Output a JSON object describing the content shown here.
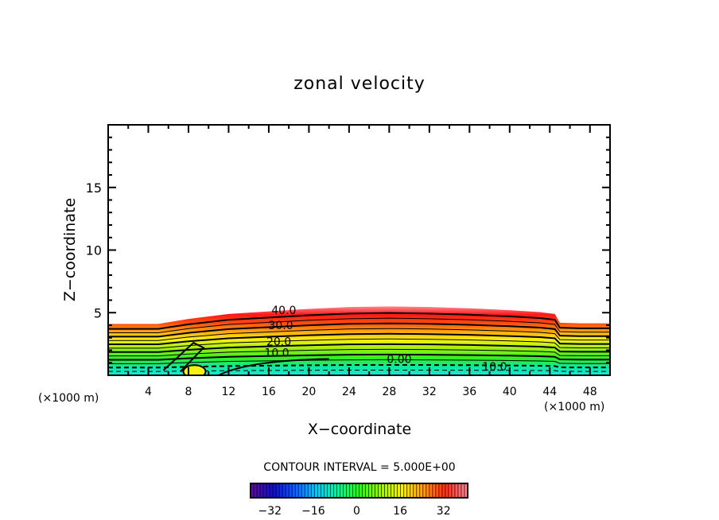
{
  "chart_data": {
    "type": "heatmap",
    "subtype": "filled-contour",
    "title": "zonal velocity",
    "xlabel": "X−coordinate",
    "ylabel": "Z−coordinate",
    "x_unit_left": "(×1000 m)",
    "x_unit_right": "(×1000 m)",
    "xlim": [
      0,
      50
    ],
    "ylim": [
      0,
      20
    ],
    "x_ticks": [
      4,
      8,
      12,
      16,
      20,
      24,
      28,
      32,
      36,
      40,
      44,
      48
    ],
    "x_tick_labels": [
      "4",
      "8",
      "12",
      "16",
      "20",
      "24",
      "28",
      "32",
      "36",
      "40",
      "44",
      "48"
    ],
    "y_ticks": [
      5,
      10,
      15
    ],
    "y_tick_labels": [
      "5",
      "10",
      "15"
    ],
    "y_minor_step": 1,
    "x_minor_step": 2,
    "contour_interval_text": "CONTOUR INTERVAL = 5.000E+00",
    "contour_interval": 5,
    "contour_labels": [
      {
        "text": "40.0",
        "x": 17.5,
        "z": 5.2
      },
      {
        "text": "30.0",
        "x": 17.2,
        "z": 4.0
      },
      {
        "text": "20.0",
        "x": 17.0,
        "z": 2.7
      },
      {
        "text": "10.0",
        "x": 16.8,
        "z": 1.8
      },
      {
        "text": "0.00",
        "x": 29.0,
        "z": 1.3
      },
      {
        "text": "10.0",
        "x": 38.5,
        "z": 0.7
      }
    ],
    "top_boundary": {
      "x": [
        0,
        5,
        8,
        12,
        16,
        20,
        24,
        28,
        32,
        36,
        40,
        43,
        44.5,
        45,
        47,
        50
      ],
      "z": [
        4.1,
        4.1,
        4.5,
        4.9,
        5.1,
        5.3,
        5.45,
        5.5,
        5.45,
        5.35,
        5.2,
        5.05,
        4.9,
        4.2,
        4.15,
        4.15
      ]
    },
    "colorbar": {
      "vmin": -40,
      "vmax": 40,
      "ticks": [
        -32,
        -16,
        0,
        16,
        32
      ],
      "tick_labels": [
        "−32",
        "−16",
        "0",
        "16",
        "32"
      ],
      "colors": [
        "#5a0fa0",
        "#1010c8",
        "#1060ff",
        "#10c8f0",
        "#10f0a0",
        "#30f020",
        "#a0f010",
        "#f8f010",
        "#ffa010",
        "#ff3010",
        "#ff8090"
      ]
    },
    "field_color_stops_bottom_to_top": [
      {
        "z_frac": 0.0,
        "color": "#10e8e0"
      },
      {
        "z_frac": 0.12,
        "color": "#10e8a0"
      },
      {
        "z_frac": 0.25,
        "color": "#30f020"
      },
      {
        "z_frac": 0.42,
        "color": "#b8f010"
      },
      {
        "z_frac": 0.52,
        "color": "#f8f010"
      },
      {
        "z_frac": 0.62,
        "color": "#ffb010"
      },
      {
        "z_frac": 0.75,
        "color": "#ff5010"
      },
      {
        "z_frac": 0.88,
        "color": "#ff1818"
      },
      {
        "z_frac": 1.0,
        "color": "#ff8890"
      }
    ]
  }
}
